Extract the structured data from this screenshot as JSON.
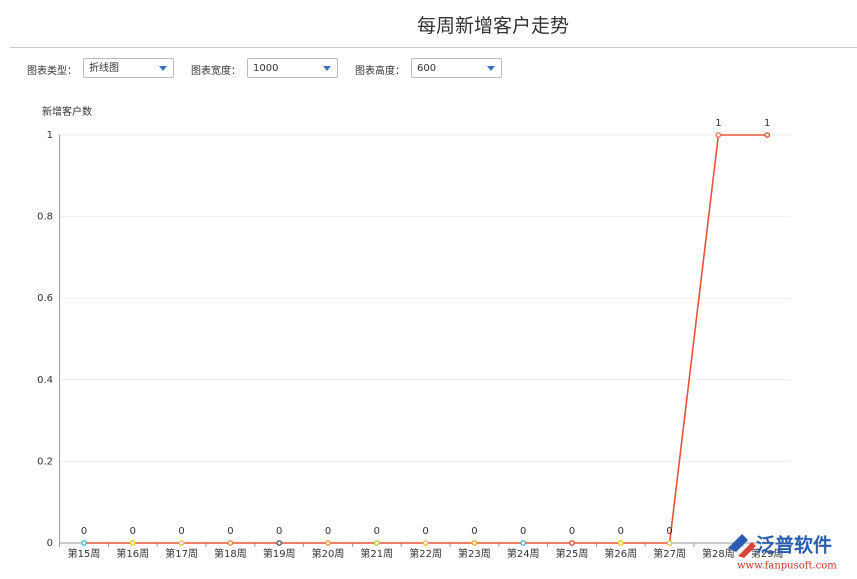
{
  "page_title": "每周新增客户走势",
  "controls": [
    {
      "label": "图表类型：",
      "value": "折线图"
    },
    {
      "label": "图表宽度：",
      "value": "1000"
    },
    {
      "label": "图表高度：",
      "value": "600"
    }
  ],
  "chart_data": {
    "type": "line",
    "y_axis_label": "新增客户数",
    "categories": [
      "第15周",
      "第16周",
      "第17周",
      "第18周",
      "第19周",
      "第20周",
      "第21周",
      "第22周",
      "第23周",
      "第24周",
      "第25周",
      "第26周",
      "第27周",
      "第28周",
      "第29周"
    ],
    "values": [
      0,
      0,
      0,
      0,
      0,
      0,
      0,
      0,
      0,
      0,
      0,
      0,
      0,
      1,
      1
    ],
    "color": "#e5533c",
    "marker_colors": [
      "#3fc0cf",
      "#f2c431",
      "#f2c431",
      "#f08a3c",
      "#4b5a6b",
      "#f08a3c",
      "#b8cc3a",
      "#f2c431",
      "#f0a43c",
      "#3fc0cf",
      "#e5533c",
      "#f2c431",
      "#f2c431",
      "#e87a5a",
      "#e5533c"
    ],
    "ylim": [
      0,
      1
    ],
    "yticks": [
      0,
      0.2,
      0.4,
      0.6,
      0.8,
      1
    ],
    "grid": true
  },
  "watermark": {
    "brand": "泛普软件",
    "url": "www.fanpusoft.com"
  }
}
